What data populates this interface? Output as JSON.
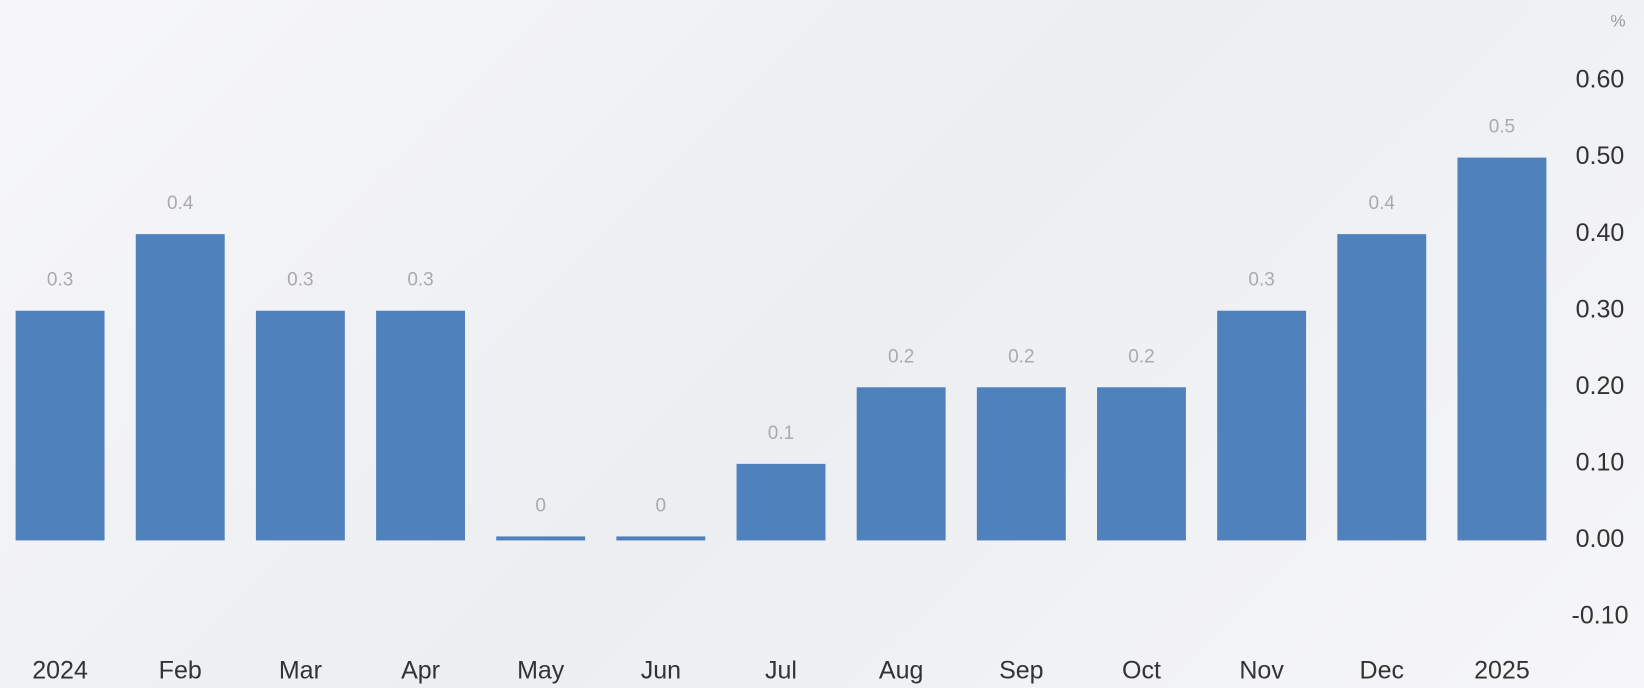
{
  "chart_data": {
    "type": "bar",
    "y_unit": "%",
    "categories": [
      "2024",
      "Feb",
      "Mar",
      "Apr",
      "May",
      "Jun",
      "Jul",
      "Aug",
      "Sep",
      "Oct",
      "Nov",
      "Dec",
      "2025"
    ],
    "values": [
      0.3,
      0.4,
      0.3,
      0.3,
      0,
      0,
      0.1,
      0.2,
      0.2,
      0.2,
      0.3,
      0.4,
      0.5
    ],
    "color": "#4f81bd",
    "ylim": [
      -0.1,
      0.6
    ],
    "yticks": [
      {
        "value": 0.6,
        "label": "0.60"
      },
      {
        "value": 0.5,
        "label": "0.50"
      },
      {
        "value": 0.4,
        "label": "0.40"
      },
      {
        "value": 0.3,
        "label": "0.30"
      },
      {
        "value": 0.2,
        "label": "0.20"
      },
      {
        "value": 0.1,
        "label": "0.10"
      },
      {
        "value": 0,
        "label": "0.00"
      },
      {
        "value": -0.1,
        "label": "-0.10"
      }
    ],
    "grid": false
  }
}
